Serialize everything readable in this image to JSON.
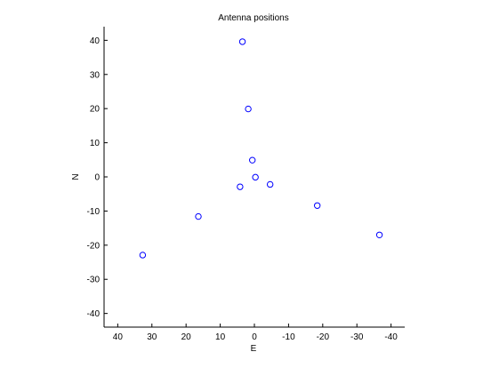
{
  "chart_data": {
    "type": "scatter",
    "title": "Antenna positions",
    "xlabel": "E",
    "ylabel": "N",
    "xlim": [
      44,
      -44
    ],
    "ylim": [
      -44,
      44
    ],
    "x_reversed": true,
    "xticks": [
      40,
      30,
      20,
      10,
      0,
      -10,
      -20,
      -30,
      -40
    ],
    "xtick_labels": [
      "40",
      "30",
      "20",
      "10",
      "0",
      "-10",
      "-20",
      "-30",
      "-40"
    ],
    "yticks": [
      40,
      30,
      20,
      10,
      0,
      -10,
      -20,
      -30,
      -40
    ],
    "ytick_labels": [
      "40",
      "30",
      "20",
      "10",
      "0",
      "-10",
      "-20",
      "-30",
      "-40"
    ],
    "grid": false,
    "marker": "circle-open",
    "marker_color": "#0000ff",
    "points": [
      {
        "x": 3.5,
        "y": 39.6
      },
      {
        "x": 1.8,
        "y": 19.9
      },
      {
        "x": 0.6,
        "y": 4.9
      },
      {
        "x": -0.3,
        "y": -0.1
      },
      {
        "x": 4.2,
        "y": -2.9
      },
      {
        "x": -4.6,
        "y": -2.2
      },
      {
        "x": 16.4,
        "y": -11.6
      },
      {
        "x": -18.4,
        "y": -8.4
      },
      {
        "x": 32.7,
        "y": -22.9
      },
      {
        "x": -36.6,
        "y": -17.0
      }
    ]
  }
}
